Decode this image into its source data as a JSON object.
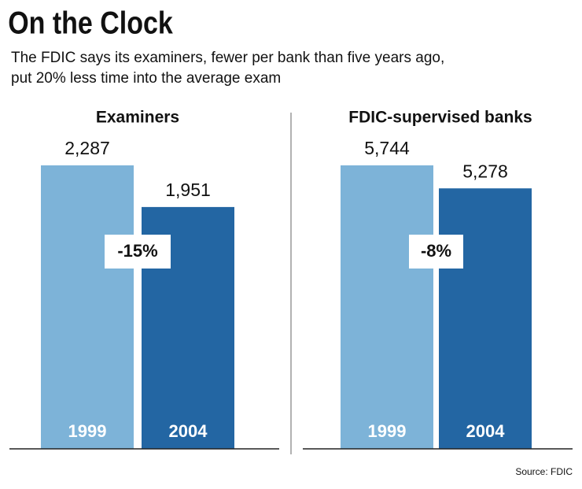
{
  "title": "On the Clock",
  "subtitle": [
    "The FDIC says its examiners, fewer per bank than five years ago,",
    "put 20% less time into the average exam"
  ],
  "source": "Source: FDIC",
  "chart_data": [
    {
      "type": "bar",
      "title": "Examiners",
      "categories": [
        "1999",
        "2004"
      ],
      "values": [
        2287,
        1951
      ],
      "value_labels": [
        "2,287",
        "1,951"
      ],
      "colors": [
        "#7db3d8",
        "#2366a3"
      ],
      "annotation": "-15%"
    },
    {
      "type": "bar",
      "title": "FDIC-supervised banks",
      "categories": [
        "1999",
        "2004"
      ],
      "values": [
        5744,
        5278
      ],
      "value_labels": [
        "5,744",
        "5,278"
      ],
      "colors": [
        "#7db3d8",
        "#2366a3"
      ],
      "annotation": "-8%"
    }
  ]
}
